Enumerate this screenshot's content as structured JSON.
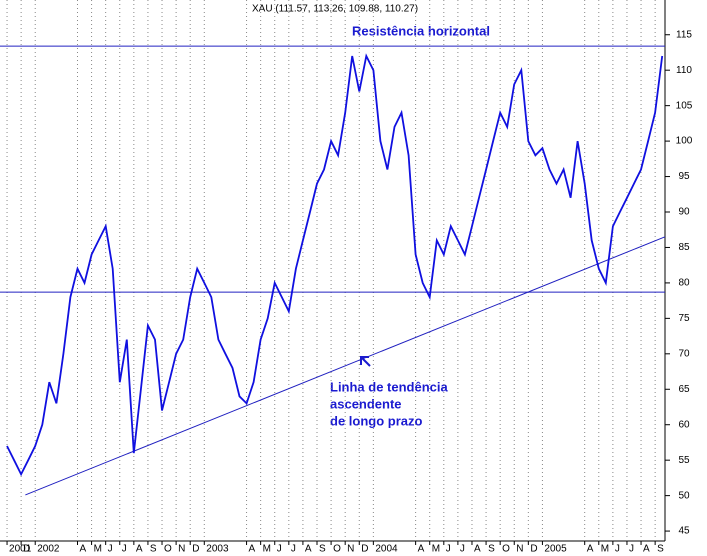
{
  "chart_data": {
    "type": "line",
    "title": "XAU (111.57, 113.26, 109.88, 110.27)",
    "x": [
      0,
      0.5,
      1,
      1.5,
      2,
      2.5,
      3,
      3.5,
      4,
      4.5,
      5,
      5.5,
      6,
      6.5,
      7,
      7.5,
      8,
      8.5,
      9,
      9.5,
      10,
      10.5,
      11,
      11.5,
      12,
      12.5,
      13,
      13.5,
      14,
      14.5,
      15,
      15.5,
      16,
      16.5,
      17,
      17.5,
      18,
      18.5,
      19,
      19.5,
      20,
      20.5,
      21,
      21.5,
      22,
      22.5,
      23,
      23.5,
      24,
      24.5,
      25,
      25.5,
      26,
      26.5,
      27,
      27.5,
      28,
      28.5,
      29,
      29.5,
      30,
      30.5,
      31,
      31.5,
      32,
      32.5,
      33,
      33.5,
      34,
      34.5,
      35,
      35.5,
      36,
      36.5,
      37,
      37.5,
      38,
      38.5,
      39,
      39.5,
      40,
      40.5,
      41,
      41.5,
      42,
      42.5,
      43,
      43.5,
      44,
      44.5,
      45,
      45.5,
      46,
      46.5
    ],
    "series": [
      {
        "name": "XAU",
        "color": "#1010e0",
        "values": [
          57,
          55,
          53,
          55,
          57,
          60,
          66,
          63,
          70,
          78,
          82,
          80,
          84,
          86,
          88,
          82,
          66,
          72,
          56,
          65,
          74,
          72,
          62,
          66,
          70,
          72,
          78,
          82,
          80,
          78,
          72,
          70,
          68,
          64,
          63,
          66,
          72,
          75,
          80,
          78,
          76,
          82,
          86,
          90,
          94,
          96,
          100,
          98,
          104,
          112,
          107,
          112,
          110,
          100,
          96,
          102,
          104,
          98,
          84,
          80,
          78,
          86,
          84,
          88,
          86,
          84,
          88,
          92,
          96,
          100,
          104,
          102,
          108,
          110,
          100,
          98,
          99,
          96,
          94,
          96,
          92,
          100,
          94,
          86,
          82,
          80,
          88,
          90,
          92,
          94,
          96,
          100,
          104,
          112
        ]
      }
    ],
    "xlim": [
      -0.5,
      46.7
    ],
    "ylim": [
      43.6,
      119.9
    ],
    "yticks": [
      45,
      50,
      55,
      60,
      65,
      70,
      75,
      80,
      85,
      90,
      95,
      100,
      105,
      110,
      115
    ],
    "xticks": [
      {
        "value": 0,
        "label": "2001"
      },
      {
        "value": 1,
        "label": "D"
      },
      {
        "value": 2,
        "label": "2002"
      },
      {
        "value": 5,
        "label": "A"
      },
      {
        "value": 6,
        "label": "M"
      },
      {
        "value": 7,
        "label": "J"
      },
      {
        "value": 8,
        "label": "J"
      },
      {
        "value": 9,
        "label": "A"
      },
      {
        "value": 10,
        "label": "S"
      },
      {
        "value": 11,
        "label": "O"
      },
      {
        "value": 12,
        "label": "N"
      },
      {
        "value": 13,
        "label": "D"
      },
      {
        "value": 14,
        "label": "2003"
      },
      {
        "value": 17,
        "label": "A"
      },
      {
        "value": 18,
        "label": "M"
      },
      {
        "value": 19,
        "label": "J"
      },
      {
        "value": 20,
        "label": "J"
      },
      {
        "value": 21,
        "label": "A"
      },
      {
        "value": 22,
        "label": "S"
      },
      {
        "value": 23,
        "label": "O"
      },
      {
        "value": 24,
        "label": "N"
      },
      {
        "value": 25,
        "label": "D"
      },
      {
        "value": 26,
        "label": "2004"
      },
      {
        "value": 29,
        "label": "A"
      },
      {
        "value": 30,
        "label": "M"
      },
      {
        "value": 31,
        "label": "J"
      },
      {
        "value": 32,
        "label": "J"
      },
      {
        "value": 33,
        "label": "A"
      },
      {
        "value": 34,
        "label": "S"
      },
      {
        "value": 35,
        "label": "O"
      },
      {
        "value": 36,
        "label": "N"
      },
      {
        "value": 37,
        "label": "D"
      },
      {
        "value": 38,
        "label": "2005"
      },
      {
        "value": 41,
        "label": "A"
      },
      {
        "value": 42,
        "label": "M"
      },
      {
        "value": 43,
        "label": "J"
      },
      {
        "value": 44,
        "label": "J"
      },
      {
        "value": 45,
        "label": "A"
      },
      {
        "value": 46,
        "label": "S"
      }
    ],
    "grid": true,
    "horizontal_lines": [
      113.4,
      78.7
    ],
    "trend_line": {
      "x": [
        1.3,
        46.7
      ],
      "y": [
        50.1,
        86.5
      ]
    },
    "resistance_label": "Resistência horizontal",
    "trend_label": [
      "Linha de tendência",
      "ascendente",
      "de longo prazo"
    ]
  }
}
